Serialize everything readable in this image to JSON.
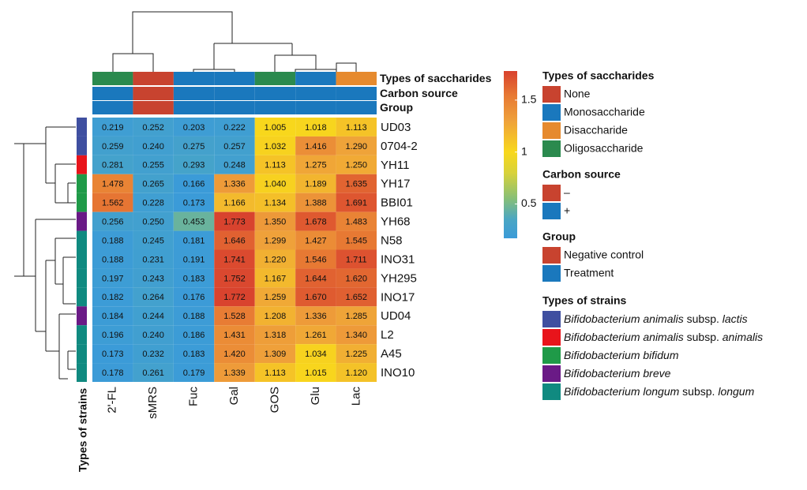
{
  "chart_data": {
    "type": "heatmap",
    "columns": [
      "2'-FL",
      "sMRS",
      "Fuc",
      "Gal",
      "GOS",
      "Glu",
      "Lac"
    ],
    "rows": [
      "UD03",
      "0704-2",
      "YH11",
      "YH17",
      "BBI01",
      "YH68",
      "N58",
      "INO31",
      "YH295",
      "INO17",
      "UD04",
      "L2",
      "A45",
      "INO10"
    ],
    "values": [
      [
        0.219,
        0.252,
        0.203,
        0.222,
        1.005,
        1.018,
        1.113
      ],
      [
        0.259,
        0.24,
        0.275,
        0.257,
        1.032,
        1.416,
        1.29
      ],
      [
        0.281,
        0.255,
        0.293,
        0.248,
        1.113,
        1.275,
        1.25
      ],
      [
        1.478,
        0.265,
        0.166,
        1.336,
        1.04,
        1.189,
        1.635
      ],
      [
        1.562,
        0.228,
        0.173,
        1.166,
        1.134,
        1.388,
        1.691
      ],
      [
        0.256,
        0.25,
        0.453,
        1.773,
        1.35,
        1.678,
        1.483
      ],
      [
        0.188,
        0.245,
        0.181,
        1.646,
        1.299,
        1.427,
        1.545
      ],
      [
        0.188,
        0.231,
        0.191,
        1.741,
        1.22,
        1.546,
        1.711
      ],
      [
        0.197,
        0.243,
        0.183,
        1.752,
        1.167,
        1.644,
        1.62
      ],
      [
        0.182,
        0.264,
        0.176,
        1.772,
        1.259,
        1.67,
        1.652
      ],
      [
        0.184,
        0.244,
        0.188,
        1.528,
        1.208,
        1.336,
        1.285
      ],
      [
        0.196,
        0.24,
        0.186,
        1.431,
        1.318,
        1.261,
        1.34
      ],
      [
        0.173,
        0.232,
        0.183,
        1.42,
        1.309,
        1.034,
        1.225
      ],
      [
        0.178,
        0.261,
        0.179,
        1.339,
        1.113,
        1.015,
        1.12
      ]
    ],
    "value_labels": [
      [
        "0.219",
        "0.252",
        "0.203",
        "0.222",
        "1.005",
        "1.018",
        "1.113"
      ],
      [
        "0.259",
        "0.240",
        "0.275",
        "0.257",
        "1.032",
        "1.416",
        "1.290"
      ],
      [
        "0.281",
        "0.255",
        "0.293",
        "0.248",
        "1.113",
        "1.275",
        "1.250"
      ],
      [
        "1.478",
        "0.265",
        "0.166",
        "1.336",
        "1.040",
        "1.189",
        "1.635"
      ],
      [
        "1.562",
        "0.228",
        "0.173",
        "1.166",
        "1.134",
        "1.388",
        "1.691"
      ],
      [
        "0.256",
        "0.250",
        "0.453",
        "1.773",
        "1.350",
        "1.678",
        "1.483"
      ],
      [
        "0.188",
        "0.245",
        "0.181",
        "1.646",
        "1.299",
        "1.427",
        "1.545"
      ],
      [
        "0.188",
        "0.231",
        "0.191",
        "1.741",
        "1.220",
        "1.546",
        "1.711"
      ],
      [
        "0.197",
        "0.243",
        "0.183",
        "1.752",
        "1.167",
        "1.644",
        "1.620"
      ],
      [
        "0.182",
        "0.264",
        "0.176",
        "1.772",
        "1.259",
        "1.670",
        "1.652"
      ],
      [
        "0.184",
        "0.244",
        "0.188",
        "1.528",
        "1.208",
        "1.336",
        "1.285"
      ],
      [
        "0.196",
        "0.240",
        "0.186",
        "1.431",
        "1.318",
        "1.261",
        "1.340"
      ],
      [
        "0.173",
        "0.232",
        "0.183",
        "1.420",
        "1.309",
        "1.034",
        "1.225"
      ],
      [
        "0.178",
        "0.261",
        "0.179",
        "1.339",
        "1.113",
        "1.015",
        "1.120"
      ]
    ],
    "colorscale": [
      [
        0.17,
        "#3b9bd8"
      ],
      [
        0.35,
        "#4aa6c4"
      ],
      [
        0.55,
        "#86bf78"
      ],
      [
        0.8,
        "#d8d23a"
      ],
      [
        1.0,
        "#f8d81c"
      ],
      [
        1.3,
        "#efa13a"
      ],
      [
        1.55,
        "#e77833"
      ],
      [
        1.78,
        "#d8412e"
      ]
    ],
    "colorbar_lim": [
      0.17,
      1.78
    ],
    "colorbar_ticks": [
      0.5,
      1,
      1.5
    ],
    "column_annotations": [
      {
        "name": "Types of saccharides",
        "values": [
          "Oligosaccharide",
          "None",
          "Monosaccharide",
          "Monosaccharide",
          "Oligosaccharide",
          "Monosaccharide",
          "Disaccharide"
        ]
      },
      {
        "name": "Carbon source",
        "values": [
          "+",
          "–",
          "+",
          "+",
          "+",
          "+",
          "+"
        ]
      },
      {
        "name": "Group",
        "values": [
          "Treatment",
          "Negative control",
          "Treatment",
          "Treatment",
          "Treatment",
          "Treatment",
          "Treatment"
        ]
      }
    ],
    "row_annotation": {
      "name": "Types of strains",
      "values": [
        "Bifidobacterium animalis subsp. lactis",
        "Bifidobacterium animalis subsp. lactis",
        "Bifidobacterium animalis subsp. animalis",
        "Bifidobacterium bifidum",
        "Bifidobacterium bifidum",
        "Bifidobacterium breve",
        "Bifidobacterium longum subsp. longum",
        "Bifidobacterium longum subsp. longum",
        "Bifidobacterium longum subsp. longum",
        "Bifidobacterium longum subsp. longum",
        "Bifidobacterium breve",
        "Bifidobacterium longum subsp. longum",
        "Bifidobacterium longum subsp. longum",
        "Bifidobacterium longum subsp. longum"
      ]
    },
    "legends": [
      {
        "title": "Types of saccharides",
        "items": [
          {
            "label": "None",
            "color": "#c8432f"
          },
          {
            "label": "Monosaccharide",
            "color": "#1a78bd"
          },
          {
            "label": "Disaccharide",
            "color": "#e68a2e"
          },
          {
            "label": "Oligosaccharide",
            "color": "#2b8a4e"
          }
        ]
      },
      {
        "title": "Carbon source",
        "items": [
          {
            "label": "–",
            "color": "#c8432f"
          },
          {
            "label": "+",
            "color": "#1a78bd"
          }
        ]
      },
      {
        "title": "Group",
        "items": [
          {
            "label": "Negative control",
            "color": "#c8432f"
          },
          {
            "label": "Treatment",
            "color": "#1a78bd"
          }
        ]
      },
      {
        "title": "Types of strains",
        "items": [
          {
            "label": "Bifidobacterium animalis subsp. lactis",
            "color": "#3f4fa0"
          },
          {
            "label": "Bifidobacterium animalis subsp. animalis",
            "color": "#e8141b"
          },
          {
            "label": "Bifidobacterium bifidum",
            "color": "#1f9a48"
          },
          {
            "label": "Bifidobacterium breve",
            "color": "#6a1a86"
          },
          {
            "label": "Bifidobacterium longum subsp. longum",
            "color": "#108a80"
          }
        ]
      }
    ]
  }
}
